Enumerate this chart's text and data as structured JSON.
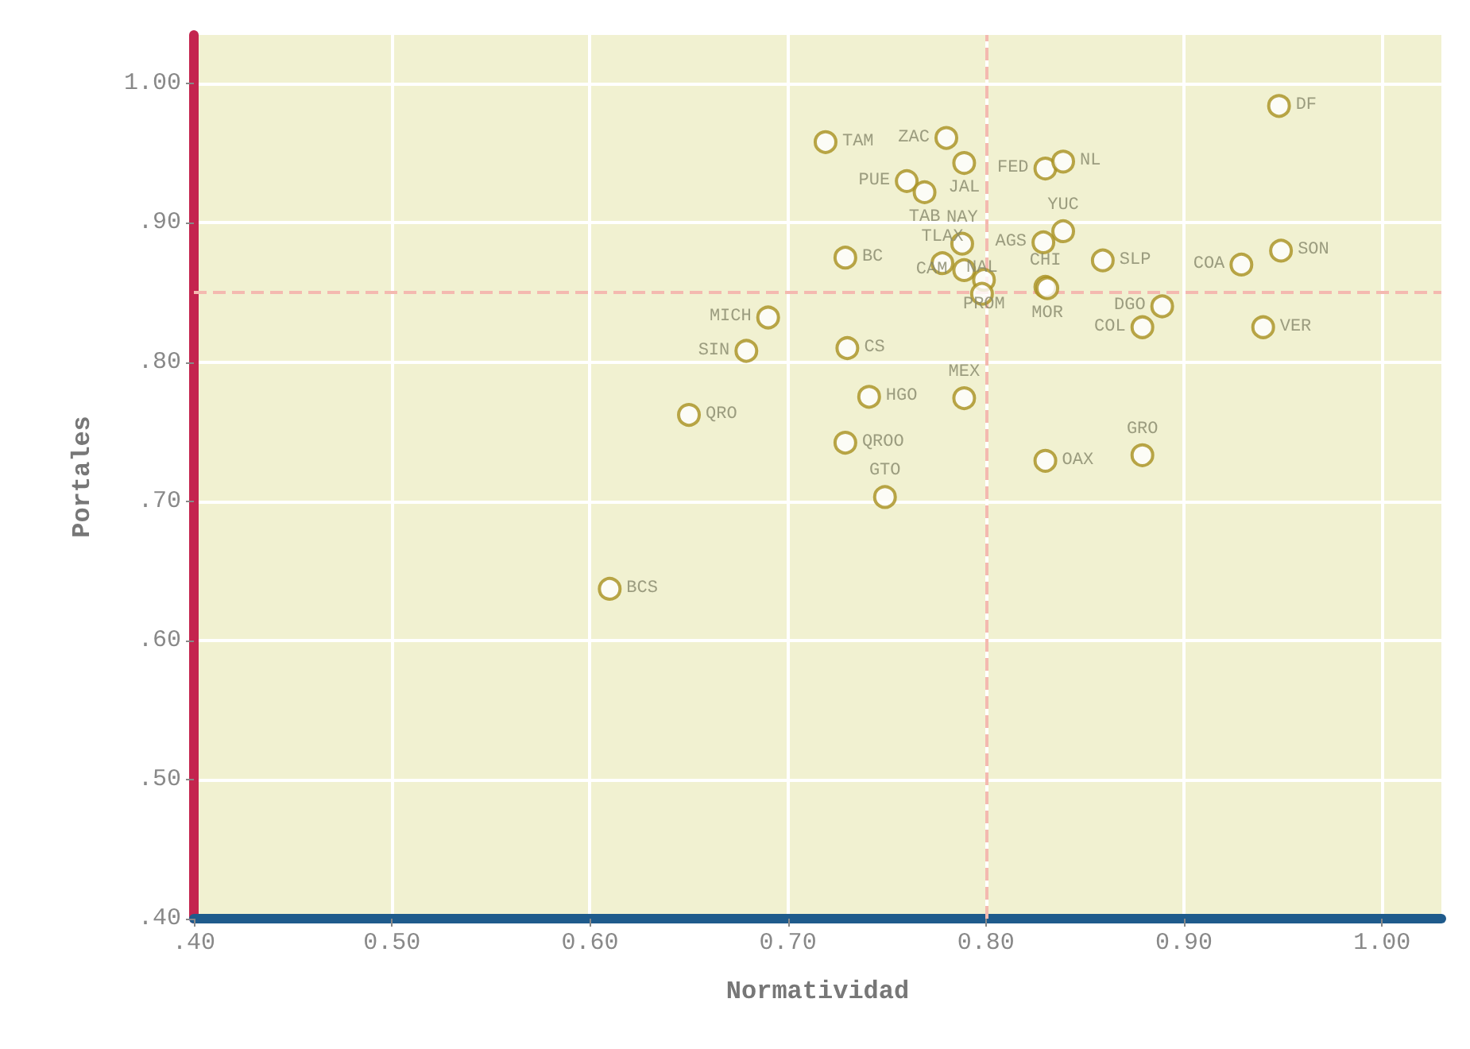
{
  "chart_data": {
    "type": "scatter",
    "xlabel": "Normatividad",
    "ylabel": "Portales",
    "xlim": [
      0.4,
      1.03
    ],
    "ylim": [
      0.4,
      1.035
    ],
    "xticks": [
      {
        "value": 0.4,
        "label": ".40"
      },
      {
        "value": 0.5,
        "label": "0.50"
      },
      {
        "value": 0.6,
        "label": "0.60"
      },
      {
        "value": 0.7,
        "label": "0.70"
      },
      {
        "value": 0.8,
        "label": "0.80"
      },
      {
        "value": 0.9,
        "label": "0.90"
      },
      {
        "value": 1.0,
        "label": "1.00"
      }
    ],
    "yticks": [
      {
        "value": 0.4,
        "label": ".40"
      },
      {
        "value": 0.5,
        "label": ".50"
      },
      {
        "value": 0.6,
        "label": ".60"
      },
      {
        "value": 0.7,
        "label": ".70"
      },
      {
        "value": 0.8,
        "label": ".80"
      },
      {
        "value": 0.9,
        "label": ".90"
      },
      {
        "value": 1.0,
        "label": "1.00"
      }
    ],
    "grid": true,
    "marker": "circle",
    "ref_lines": [
      {
        "axis": "x",
        "value": 0.798,
        "color": "#f4b9b0",
        "line_style": "dashed"
      },
      {
        "axis": "y",
        "value": 0.849,
        "color": "#f4b9b0",
        "line_style": "dashed"
      }
    ],
    "series": [
      {
        "color": "#a8901e",
        "x": [
          0.948,
          0.719,
          0.78,
          0.789,
          0.76,
          0.769,
          0.83,
          0.839,
          0.729,
          0.788,
          0.829,
          0.839,
          0.859,
          0.778,
          0.789,
          0.799,
          0.798,
          0.83,
          0.831,
          0.889,
          0.879,
          0.929,
          0.949,
          0.94,
          0.69,
          0.73,
          0.679,
          0.741,
          0.789,
          0.65,
          0.729,
          0.749,
          0.61,
          0.83,
          0.879
        ],
        "values": [
          0.984,
          0.958,
          0.961,
          0.943,
          0.93,
          0.922,
          0.939,
          0.944,
          0.875,
          0.885,
          0.886,
          0.894,
          0.873,
          0.871,
          0.866,
          0.859,
          0.849,
          0.854,
          0.853,
          0.84,
          0.825,
          0.87,
          0.88,
          0.825,
          0.832,
          0.81,
          0.808,
          0.775,
          0.774,
          0.762,
          0.742,
          0.703,
          0.637,
          0.729,
          0.733
        ],
        "value_labels": [
          "DF",
          "TAM",
          "ZAC",
          "JAL",
          "PUE",
          "TAB",
          "FED",
          "NL",
          "BC",
          "NAY",
          "AGS",
          "YUC",
          "SLP",
          "TLAX",
          "CAM",
          "PROM",
          "NAL",
          "CHI",
          "MOR",
          "DGO",
          "COL",
          "COA",
          "SON",
          "VER",
          "MICH",
          "CS",
          "SIN",
          "HGO",
          "MEX",
          "QRO",
          "QROO",
          "GTO",
          "BCS",
          "OAX",
          "GRO"
        ]
      }
    ]
  }
}
